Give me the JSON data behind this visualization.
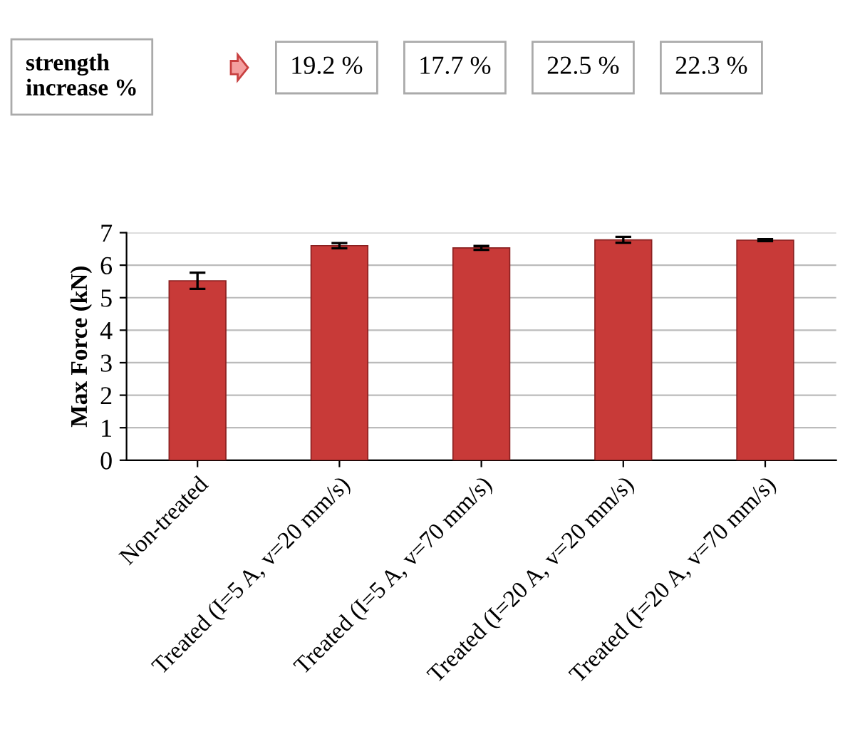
{
  "chart_data": {
    "type": "bar",
    "ylabel": "Max Force (kN)",
    "categories": [
      "Non-treated",
      "Treated (I=5 A, v=20 mm/s)",
      "Treated (I=5 A, v=70 mm/s)",
      "Treated (I=20 A, v=20 mm/s)",
      "Treated (I=20 A, v=70 mm/s)"
    ],
    "values": [
      5.52,
      6.6,
      6.53,
      6.78,
      6.77
    ],
    "errors": [
      0.25,
      0.08,
      0.06,
      0.09,
      0.03
    ],
    "color": "#c83a38",
    "ylim": [
      0,
      7
    ],
    "yticks": [
      0,
      1,
      2,
      3,
      4,
      5,
      6,
      7
    ],
    "grid": "y",
    "annotations": [
      "strength\nincrease %",
      "19.2 %",
      "17.7 %",
      "22.5 %",
      "22.3 %"
    ]
  }
}
